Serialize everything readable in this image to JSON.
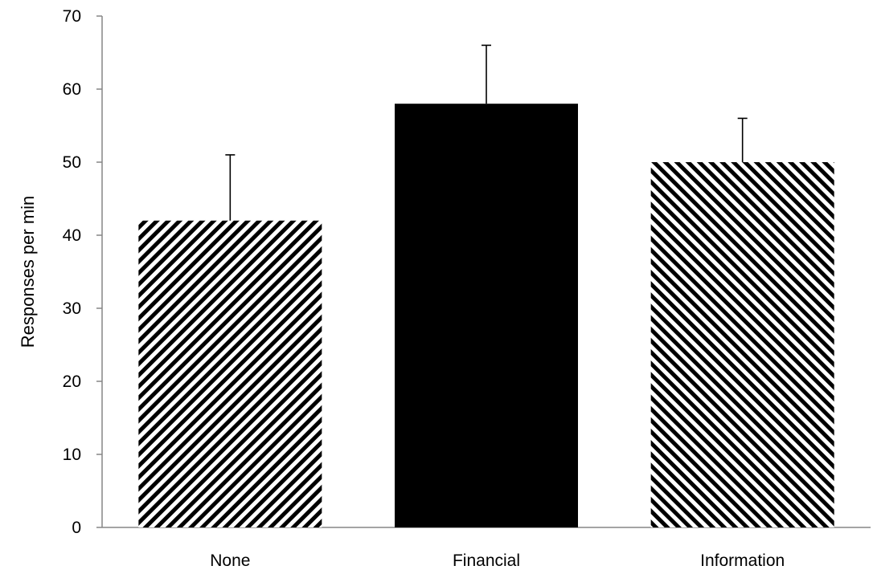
{
  "chart_data": {
    "type": "bar",
    "title": "",
    "xlabel": "",
    "ylabel": "Responses per min",
    "ylim": [
      0,
      70
    ],
    "yticks": [
      0,
      10,
      20,
      30,
      40,
      50,
      60,
      70
    ],
    "grid": false,
    "legend": "none",
    "categories": [
      "None",
      "Financial",
      "Information"
    ],
    "values": [
      42,
      58,
      50
    ],
    "error_upper": [
      9,
      8,
      6
    ],
    "bar_styles": [
      {
        "pattern": "diagonal-stripes-down",
        "color": "#000000"
      },
      {
        "pattern": "solid",
        "color": "#000000"
      },
      {
        "pattern": "diagonal-stripes-up",
        "color": "#000000"
      }
    ]
  }
}
